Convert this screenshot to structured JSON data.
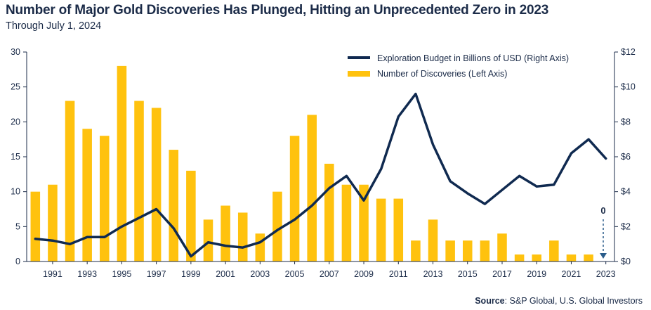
{
  "header": {
    "title": "Number of Major Gold Discoveries Has Plunged, Hitting an Unprecedented Zero in 2023",
    "subtitle": "Through July 1, 2024"
  },
  "source": {
    "label": "Source",
    "text": ": S&P Global, U.S. Global Investors"
  },
  "annotation": {
    "zero_label": "0"
  },
  "colors": {
    "bars": "#ffc20e",
    "line": "#102a50",
    "axis": "#1b2b48"
  },
  "chart_data": {
    "type": "bar+line",
    "x": [
      1990,
      1991,
      1992,
      1993,
      1994,
      1995,
      1996,
      1997,
      1998,
      1999,
      2000,
      2001,
      2002,
      2003,
      2004,
      2005,
      2006,
      2007,
      2008,
      2009,
      2010,
      2011,
      2012,
      2013,
      2014,
      2015,
      2016,
      2017,
      2018,
      2019,
      2020,
      2021,
      2022,
      2023
    ],
    "x_tick_labels": [
      "1991",
      "1993",
      "1995",
      "1997",
      "1999",
      "2001",
      "2003",
      "2005",
      "2007",
      "2009",
      "2011",
      "2013",
      "2015",
      "2017",
      "2019",
      "2021",
      "2023"
    ],
    "series": [
      {
        "name": "Number of Discoveries (Left Axis)",
        "type": "bar",
        "axis": "left",
        "values": [
          10,
          11,
          23,
          19,
          18,
          28,
          23,
          22,
          16,
          13,
          6,
          8,
          7,
          4,
          10,
          18,
          21,
          14,
          11,
          11,
          9,
          9,
          3,
          6,
          3,
          3,
          3,
          4,
          1,
          1,
          3,
          1,
          1,
          0
        ]
      },
      {
        "name": "Exploration Budget in Billions of USD (Right Axis)",
        "type": "line",
        "axis": "right",
        "values": [
          1.3,
          1.2,
          1.0,
          1.4,
          1.4,
          2.0,
          2.5,
          3.0,
          1.9,
          0.3,
          1.1,
          0.9,
          0.8,
          1.1,
          1.8,
          2.4,
          3.2,
          4.2,
          4.9,
          3.5,
          5.3,
          8.3,
          9.6,
          6.7,
          4.6,
          3.9,
          3.3,
          4.1,
          4.9,
          4.3,
          4.4,
          6.2,
          7.0,
          5.9
        ]
      }
    ],
    "left_axis": {
      "min": 0,
      "max": 30,
      "ticks": [
        "0",
        "5",
        "10",
        "15",
        "20",
        "25",
        "30"
      ]
    },
    "right_axis": {
      "min": 0,
      "max": 12,
      "ticks": [
        "$0",
        "$2",
        "$4",
        "$6",
        "$8",
        "$10",
        "$12"
      ]
    },
    "grid": false,
    "legend_position": "top-right"
  }
}
